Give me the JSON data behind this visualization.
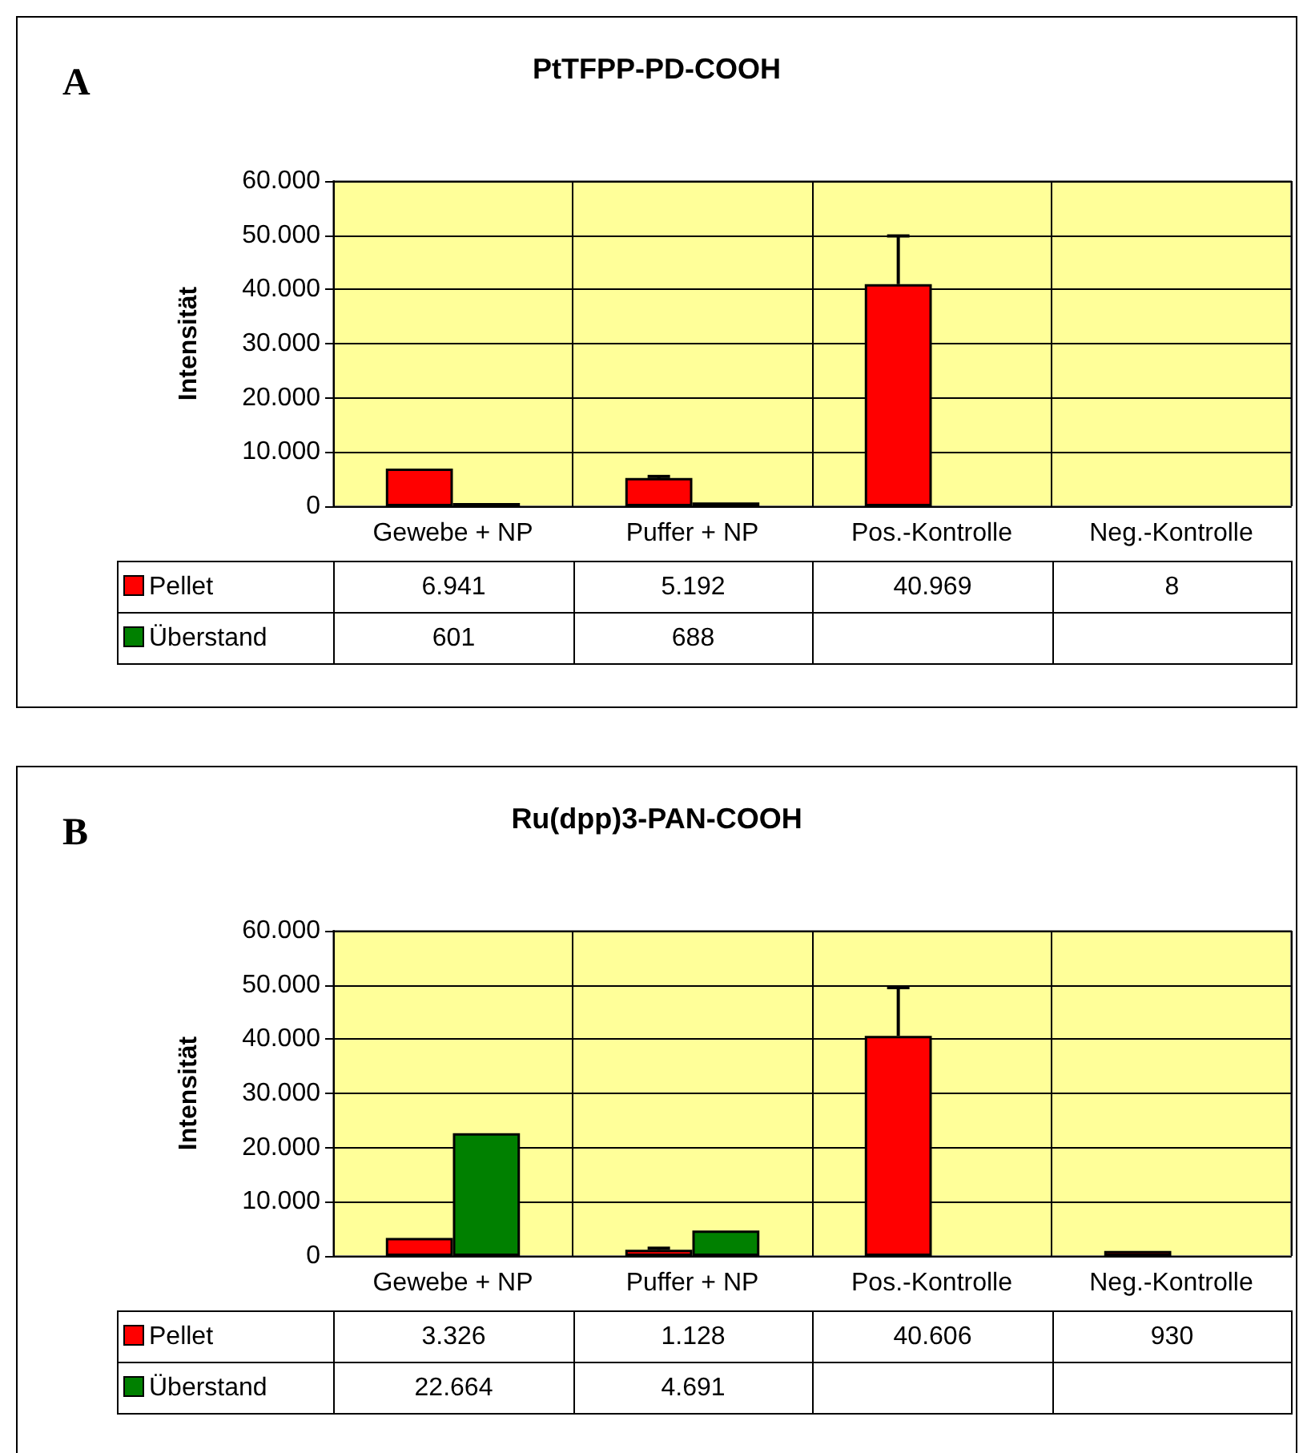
{
  "chart_data": [
    {
      "type": "bar",
      "title": "PtTFPP-PD-COOH",
      "ylabel": "Intensität",
      "annotations": [
        "A"
      ],
      "categories": [
        "Gewebe + NP",
        "Puffer + NP",
        "Pos.-Kontrolle",
        "Neg.-Kontrolle"
      ],
      "series": [
        {
          "name": "Pellet",
          "color": "#ff0000",
          "values": [
            6941,
            5192,
            40969,
            8
          ],
          "value_labels": [
            "6.941",
            "5.192",
            "40.969",
            "8"
          ],
          "errors": [
            null,
            300,
            8900,
            null
          ]
        },
        {
          "name": "Überstand",
          "color": "#008000",
          "values": [
            601,
            688,
            null,
            null
          ],
          "value_labels": [
            "601",
            "688",
            null,
            null
          ]
        }
      ],
      "ylim": [
        0,
        60000
      ],
      "yticks": [
        0,
        {
          "value": 10000,
          "label": "10.000"
        },
        {
          "value": 20000,
          "label": "20.000"
        },
        {
          "value": 30000,
          "label": "30.000"
        },
        {
          "value": 40000,
          "label": "40.000"
        },
        {
          "value": 50000,
          "label": "50.000"
        },
        {
          "value": 60000,
          "label": "60.000"
        }
      ],
      "grid": true,
      "legend": "bottom"
    },
    {
      "type": "bar",
      "title": "Ru(dpp)3-PAN-COOH",
      "ylabel": "Intensität",
      "annotations": [
        "B"
      ],
      "categories": [
        "Gewebe + NP",
        "Puffer + NP",
        "Pos.-Kontrolle",
        "Neg.-Kontrolle"
      ],
      "series": [
        {
          "name": "Pellet",
          "color": "#ff0000",
          "values": [
            3326,
            1128,
            40606,
            930
          ],
          "value_labels": [
            "3.326",
            "1.128",
            "40.606",
            "930"
          ],
          "errors": [
            null,
            300,
            8900,
            null
          ]
        },
        {
          "name": "Überstand",
          "color": "#008000",
          "values": [
            22664,
            4691,
            null,
            null
          ],
          "value_labels": [
            "22.664",
            "4.691",
            null,
            null
          ]
        }
      ],
      "ylim": [
        0,
        60000
      ],
      "yticks": [
        0,
        {
          "value": 10000,
          "label": "10.000"
        },
        {
          "value": 20000,
          "label": "20.000"
        },
        {
          "value": 30000,
          "label": "30.000"
        },
        {
          "value": 40000,
          "label": "40.000"
        },
        {
          "value": 50000,
          "label": "50.000"
        },
        {
          "value": 60000,
          "label": "60.000"
        }
      ],
      "grid": true,
      "legend": "bottom"
    }
  ]
}
